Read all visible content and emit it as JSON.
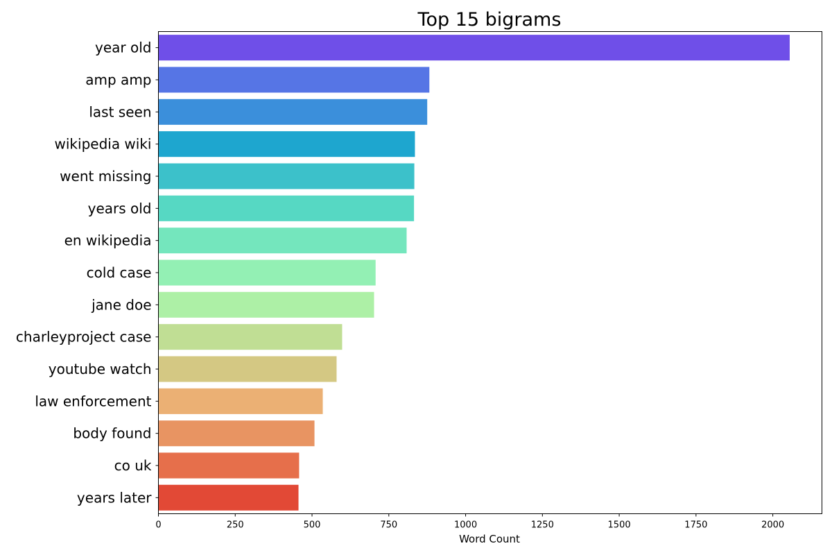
{
  "chart_data": {
    "type": "bar",
    "orientation": "horizontal",
    "title": "Top 15 bigrams",
    "xlabel": "Word Count",
    "ylabel": "",
    "xlim": [
      0,
      2160
    ],
    "xticks": [
      0,
      250,
      500,
      750,
      1000,
      1250,
      1500,
      1750,
      2000
    ],
    "grid": false,
    "categories": [
      "year old",
      "amp amp",
      "last seen",
      "wikipedia wiki",
      "went missing",
      "years old",
      "en wikipedia",
      "cold case",
      "jane doe",
      "charleyproject case",
      "youtube watch",
      "law enforcement",
      "body found",
      "co uk",
      "years later"
    ],
    "values": [
      2055,
      882,
      875,
      835,
      833,
      832,
      808,
      707,
      702,
      598,
      580,
      535,
      508,
      458,
      456
    ],
    "colors": [
      "#6f4fe8",
      "#5675e5",
      "#3b8fdb",
      "#1ea6cf",
      "#3cc1ca",
      "#56d8c3",
      "#74e6bd",
      "#93f0b4",
      "#adf0a6",
      "#c0de94",
      "#d4c883",
      "#ebb074",
      "#e89462",
      "#e66f4b",
      "#e24936"
    ]
  }
}
